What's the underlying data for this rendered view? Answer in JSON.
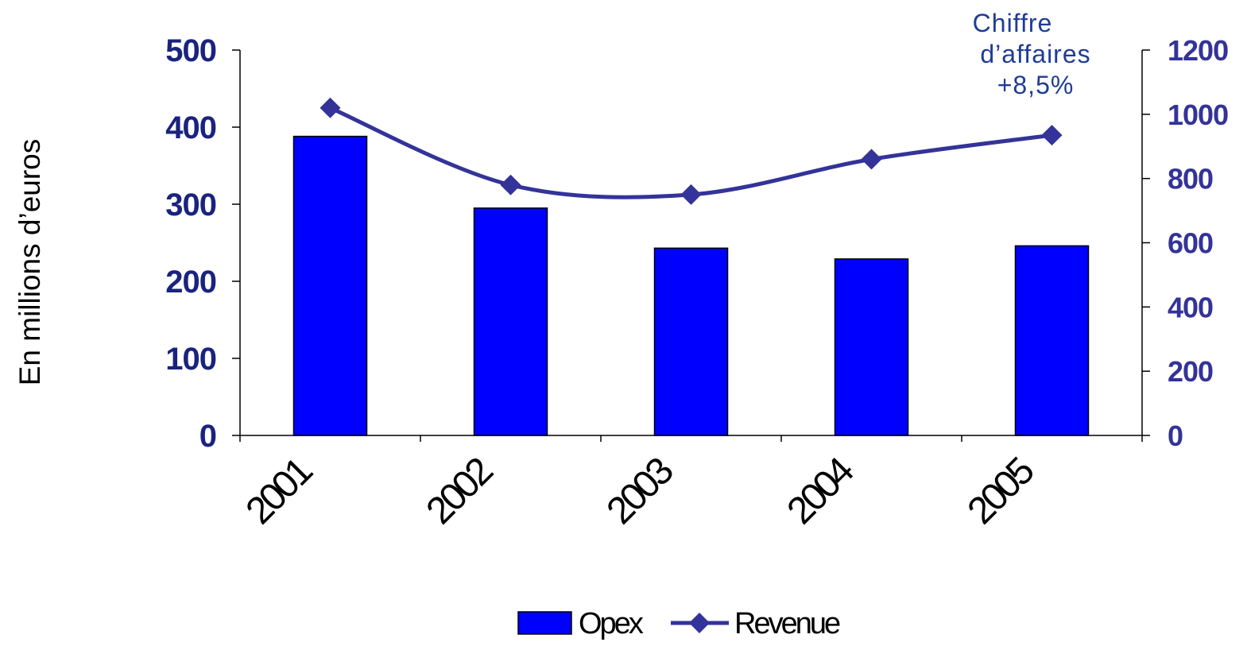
{
  "chart_data": {
    "type": "bar",
    "categories": [
      "2001",
      "2002",
      "2003",
      "2004",
      "2005"
    ],
    "series": [
      {
        "name": "Opex",
        "type": "bar",
        "axis": "left",
        "values": [
          388,
          295,
          243,
          229,
          246
        ],
        "color": "#0000FF"
      },
      {
        "name": "Revenue",
        "type": "line",
        "axis": "right",
        "values": [
          1020,
          780,
          750,
          860,
          935
        ],
        "color": "#333399"
      }
    ],
    "ylabel": "En millions d’euros",
    "ylim_left": [
      0,
      500
    ],
    "yticks_left": [
      "0",
      "100",
      "200",
      "300",
      "400",
      "500"
    ],
    "ylim_right": [
      0,
      1200
    ],
    "yticks_right": [
      "0",
      "200",
      "400",
      "600",
      "800",
      "1000",
      "1200"
    ],
    "annotation": [
      "Chiffre",
      "d’affaires",
      "+8,5%"
    ],
    "legend": {
      "position": "bottom",
      "items": [
        "Opex",
        "Revenue"
      ]
    },
    "grid": false,
    "colors": {
      "left_axis_text": "#1A237E",
      "right_axis_text": "#333399",
      "annotation": "#1F3C96",
      "axis": "#000000"
    }
  }
}
